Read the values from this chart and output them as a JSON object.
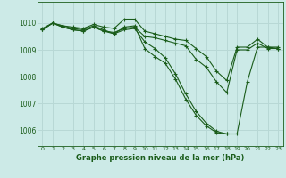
{
  "background_color": "#cceae7",
  "grid_color": "#b8d8d5",
  "line_color": "#1a5c1a",
  "title": "Graphe pression niveau de la mer (hPa)",
  "xlim": [
    -0.5,
    23.5
  ],
  "ylim": [
    1005.4,
    1010.8
  ],
  "yticks": [
    1006,
    1007,
    1008,
    1009,
    1010
  ],
  "xticks": [
    0,
    1,
    2,
    3,
    4,
    5,
    6,
    7,
    8,
    9,
    10,
    11,
    12,
    13,
    14,
    15,
    16,
    17,
    18,
    19,
    20,
    21,
    22,
    23
  ],
  "series": [
    {
      "x": [
        0,
        1,
        2,
        3,
        4,
        5,
        6,
        7,
        8,
        9,
        10,
        11,
        12,
        13,
        14,
        15,
        16,
        17,
        18,
        19,
        20,
        21,
        22,
        23
      ],
      "y": [
        1009.8,
        1010.0,
        1009.9,
        1009.85,
        1009.8,
        1009.95,
        1009.85,
        1009.8,
        1010.15,
        1010.15,
        1009.7,
        1009.6,
        1009.5,
        1009.4,
        1009.35,
        1009.05,
        1008.75,
        1008.2,
        1007.85,
        1009.1,
        1009.1,
        1009.4,
        1009.1,
        1009.1
      ]
    },
    {
      "x": [
        0,
        1,
        2,
        3,
        4,
        5,
        6,
        7,
        8,
        9,
        10,
        11,
        12,
        13,
        14,
        15,
        16,
        17,
        18,
        19,
        20,
        21,
        22,
        23
      ],
      "y": [
        1009.75,
        1010.0,
        1009.85,
        1009.75,
        1009.7,
        1009.85,
        1009.7,
        1009.65,
        1009.8,
        1009.85,
        1009.5,
        1009.45,
        1009.35,
        1009.25,
        1009.15,
        1008.65,
        1008.35,
        1007.8,
        1007.4,
        1009.0,
        1009.0,
        1009.25,
        1009.05,
        1009.05
      ]
    },
    {
      "x": [
        0,
        1,
        2,
        3,
        4,
        5,
        6,
        7,
        8,
        9,
        10,
        11,
        12,
        13,
        14,
        15,
        16,
        17,
        18
      ],
      "y": [
        1009.75,
        1010.0,
        1009.9,
        1009.8,
        1009.75,
        1009.9,
        1009.75,
        1009.6,
        1009.85,
        1009.9,
        1009.05,
        1008.75,
        1008.5,
        1007.9,
        1007.15,
        1006.55,
        1006.15,
        1005.9,
        1005.85
      ]
    },
    {
      "x": [
        0,
        1,
        2,
        3,
        4,
        5,
        6,
        7,
        8,
        9,
        10,
        11,
        12,
        13,
        14,
        15,
        16,
        17,
        18,
        19,
        20,
        21,
        22,
        23
      ],
      "y": [
        1009.75,
        1010.0,
        1009.85,
        1009.75,
        1009.7,
        1009.85,
        1009.7,
        1009.6,
        1009.75,
        1009.8,
        1009.3,
        1009.05,
        1008.7,
        1008.1,
        1007.35,
        1006.7,
        1006.25,
        1005.95,
        1005.85,
        1005.85,
        1007.8,
        1009.1,
        1009.1,
        1009.05
      ]
    }
  ]
}
